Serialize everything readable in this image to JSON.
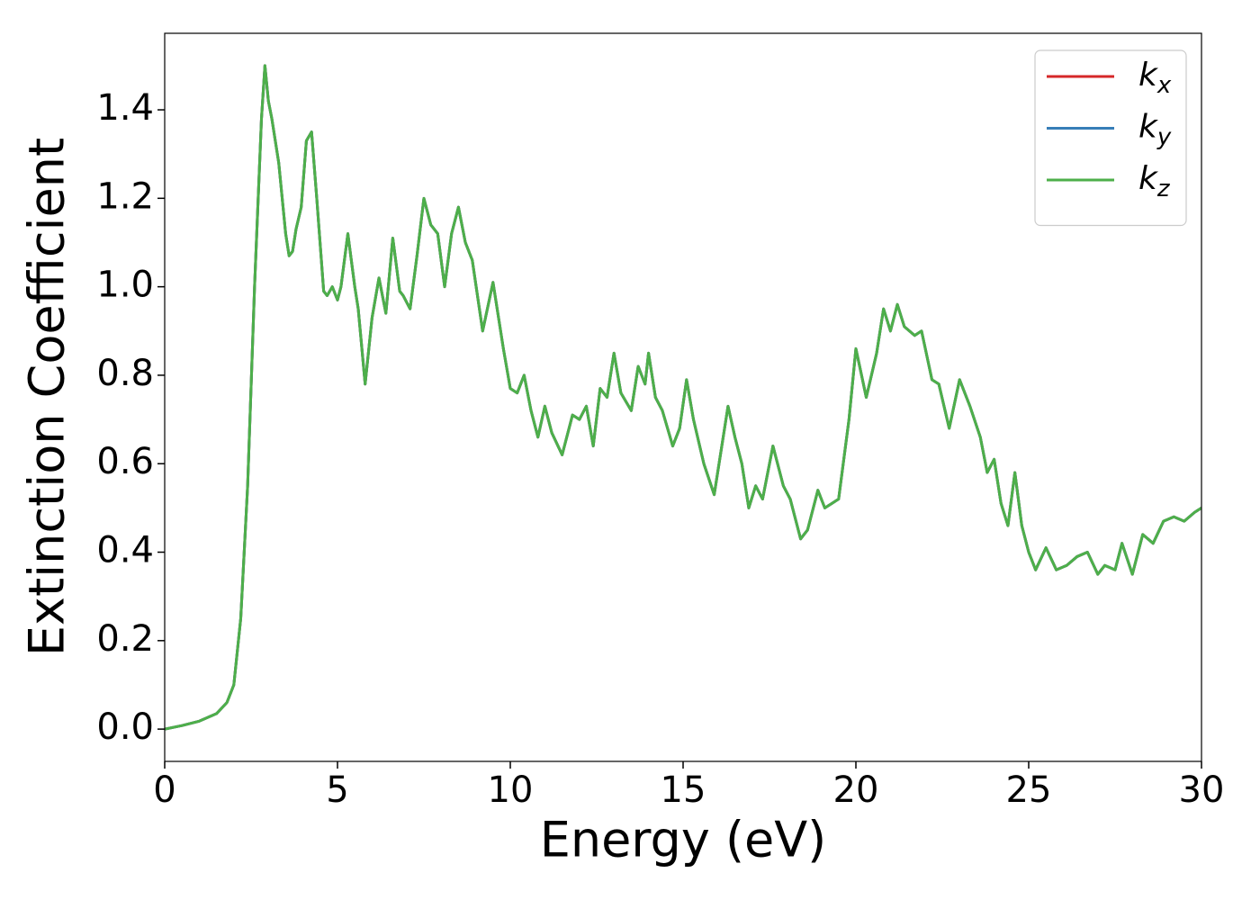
{
  "chart_data": {
    "type": "line",
    "xlabel": "Energy (eV)",
    "ylabel": "Extinction Coefficient",
    "x": [
      0,
      0.5,
      1,
      1.5,
      1.8,
      2.0,
      2.2,
      2.4,
      2.6,
      2.8,
      2.9,
      3.0,
      3.1,
      3.3,
      3.5,
      3.6,
      3.7,
      3.8,
      3.95,
      4.1,
      4.25,
      4.4,
      4.6,
      4.7,
      4.85,
      5.0,
      5.1,
      5.3,
      5.5,
      5.6,
      5.8,
      6.0,
      6.2,
      6.4,
      6.6,
      6.8,
      6.9,
      7.1,
      7.3,
      7.5,
      7.7,
      7.9,
      8.1,
      8.3,
      8.5,
      8.7,
      8.9,
      9.2,
      9.5,
      9.8,
      10.0,
      10.2,
      10.4,
      10.6,
      10.8,
      11.0,
      11.2,
      11.5,
      11.8,
      12.0,
      12.2,
      12.4,
      12.6,
      12.8,
      13.0,
      13.2,
      13.5,
      13.7,
      13.9,
      14.0,
      14.2,
      14.4,
      14.7,
      14.9,
      15.1,
      15.3,
      15.6,
      15.9,
      16.1,
      16.3,
      16.5,
      16.7,
      16.9,
      17.1,
      17.3,
      17.6,
      17.9,
      18.1,
      18.4,
      18.6,
      18.9,
      19.1,
      19.3,
      19.5,
      19.8,
      20.0,
      20.3,
      20.6,
      20.8,
      21.0,
      21.2,
      21.4,
      21.7,
      21.9,
      22.2,
      22.4,
      22.7,
      23.0,
      23.3,
      23.6,
      23.8,
      24.0,
      24.2,
      24.4,
      24.6,
      24.8,
      25.0,
      25.2,
      25.5,
      25.8,
      26.1,
      26.4,
      26.7,
      27.0,
      27.2,
      27.5,
      27.7,
      28.0,
      28.3,
      28.6,
      28.9,
      29.2,
      29.5,
      29.8,
      30.0
    ],
    "series": [
      {
        "name": "kx",
        "color": "#d62728",
        "values": [
          0,
          0.008,
          0.018,
          0.035,
          0.06,
          0.1,
          0.25,
          0.55,
          1.0,
          1.38,
          1.5,
          1.42,
          1.38,
          1.28,
          1.12,
          1.07,
          1.08,
          1.13,
          1.18,
          1.33,
          1.35,
          1.2,
          0.99,
          0.98,
          1.0,
          0.97,
          1.0,
          1.12,
          1.0,
          0.95,
          0.78,
          0.93,
          1.02,
          0.94,
          1.11,
          0.99,
          0.98,
          0.95,
          1.07,
          1.2,
          1.14,
          1.12,
          1.0,
          1.12,
          1.18,
          1.1,
          1.06,
          0.9,
          1.01,
          0.86,
          0.77,
          0.76,
          0.8,
          0.72,
          0.66,
          0.73,
          0.67,
          0.62,
          0.71,
          0.7,
          0.73,
          0.64,
          0.77,
          0.75,
          0.85,
          0.76,
          0.72,
          0.82,
          0.78,
          0.85,
          0.75,
          0.72,
          0.64,
          0.68,
          0.79,
          0.7,
          0.6,
          0.53,
          0.63,
          0.73,
          0.66,
          0.6,
          0.5,
          0.55,
          0.52,
          0.64,
          0.55,
          0.52,
          0.43,
          0.45,
          0.54,
          0.5,
          0.51,
          0.52,
          0.7,
          0.86,
          0.75,
          0.85,
          0.95,
          0.9,
          0.96,
          0.91,
          0.89,
          0.9,
          0.79,
          0.78,
          0.68,
          0.79,
          0.73,
          0.66,
          0.58,
          0.61,
          0.51,
          0.46,
          0.58,
          0.46,
          0.4,
          0.36,
          0.41,
          0.36,
          0.37,
          0.39,
          0.4,
          0.35,
          0.37,
          0.36,
          0.42,
          0.35,
          0.44,
          0.42,
          0.47,
          0.48,
          0.47,
          0.49,
          0.5
        ]
      },
      {
        "name": "ky",
        "color": "#377eb8",
        "values": [
          0,
          0.008,
          0.018,
          0.035,
          0.06,
          0.1,
          0.25,
          0.55,
          1.0,
          1.38,
          1.5,
          1.42,
          1.38,
          1.28,
          1.12,
          1.07,
          1.08,
          1.13,
          1.18,
          1.33,
          1.35,
          1.2,
          0.99,
          0.98,
          1.0,
          0.97,
          1.0,
          1.12,
          1.0,
          0.95,
          0.78,
          0.93,
          1.02,
          0.94,
          1.11,
          0.99,
          0.98,
          0.95,
          1.07,
          1.2,
          1.14,
          1.12,
          1.0,
          1.12,
          1.18,
          1.1,
          1.06,
          0.9,
          1.01,
          0.86,
          0.77,
          0.76,
          0.8,
          0.72,
          0.66,
          0.73,
          0.67,
          0.62,
          0.71,
          0.7,
          0.73,
          0.64,
          0.77,
          0.75,
          0.85,
          0.76,
          0.72,
          0.82,
          0.78,
          0.85,
          0.75,
          0.72,
          0.64,
          0.68,
          0.79,
          0.7,
          0.6,
          0.53,
          0.63,
          0.73,
          0.66,
          0.6,
          0.5,
          0.55,
          0.52,
          0.64,
          0.55,
          0.52,
          0.43,
          0.45,
          0.54,
          0.5,
          0.51,
          0.52,
          0.7,
          0.86,
          0.75,
          0.85,
          0.95,
          0.9,
          0.96,
          0.91,
          0.89,
          0.9,
          0.79,
          0.78,
          0.68,
          0.79,
          0.73,
          0.66,
          0.58,
          0.61,
          0.51,
          0.46,
          0.58,
          0.46,
          0.4,
          0.36,
          0.41,
          0.36,
          0.37,
          0.39,
          0.4,
          0.35,
          0.37,
          0.36,
          0.42,
          0.35,
          0.44,
          0.42,
          0.47,
          0.48,
          0.47,
          0.49,
          0.5
        ]
      },
      {
        "name": "kz",
        "color": "#4daf4a",
        "values": [
          0,
          0.008,
          0.018,
          0.035,
          0.06,
          0.1,
          0.25,
          0.55,
          1.0,
          1.38,
          1.5,
          1.42,
          1.38,
          1.28,
          1.12,
          1.07,
          1.08,
          1.13,
          1.18,
          1.33,
          1.35,
          1.2,
          0.99,
          0.98,
          1.0,
          0.97,
          1.0,
          1.12,
          1.0,
          0.95,
          0.78,
          0.93,
          1.02,
          0.94,
          1.11,
          0.99,
          0.98,
          0.95,
          1.07,
          1.2,
          1.14,
          1.12,
          1.0,
          1.12,
          1.18,
          1.1,
          1.06,
          0.9,
          1.01,
          0.86,
          0.77,
          0.76,
          0.8,
          0.72,
          0.66,
          0.73,
          0.67,
          0.62,
          0.71,
          0.7,
          0.73,
          0.64,
          0.77,
          0.75,
          0.85,
          0.76,
          0.72,
          0.82,
          0.78,
          0.85,
          0.75,
          0.72,
          0.64,
          0.68,
          0.79,
          0.7,
          0.6,
          0.53,
          0.63,
          0.73,
          0.66,
          0.6,
          0.5,
          0.55,
          0.52,
          0.64,
          0.55,
          0.52,
          0.43,
          0.45,
          0.54,
          0.5,
          0.51,
          0.52,
          0.7,
          0.86,
          0.75,
          0.85,
          0.95,
          0.9,
          0.96,
          0.91,
          0.89,
          0.9,
          0.79,
          0.78,
          0.68,
          0.79,
          0.73,
          0.66,
          0.58,
          0.61,
          0.51,
          0.46,
          0.58,
          0.46,
          0.4,
          0.36,
          0.41,
          0.36,
          0.37,
          0.39,
          0.4,
          0.35,
          0.37,
          0.36,
          0.42,
          0.35,
          0.44,
          0.42,
          0.47,
          0.48,
          0.47,
          0.49,
          0.5
        ]
      }
    ],
    "xlim": [
      0,
      30
    ],
    "xticks": [
      0,
      5,
      10,
      15,
      20,
      25,
      30
    ],
    "ylim": [
      -0.073,
      1.573
    ],
    "yticks": [
      {
        "value": 0,
        "label": "0.0"
      },
      0.2,
      0.4,
      0.6,
      0.8,
      {
        "value": 1,
        "label": "1.0"
      },
      1.2,
      1.4
    ],
    "legend": "upper right",
    "grid": false
  }
}
